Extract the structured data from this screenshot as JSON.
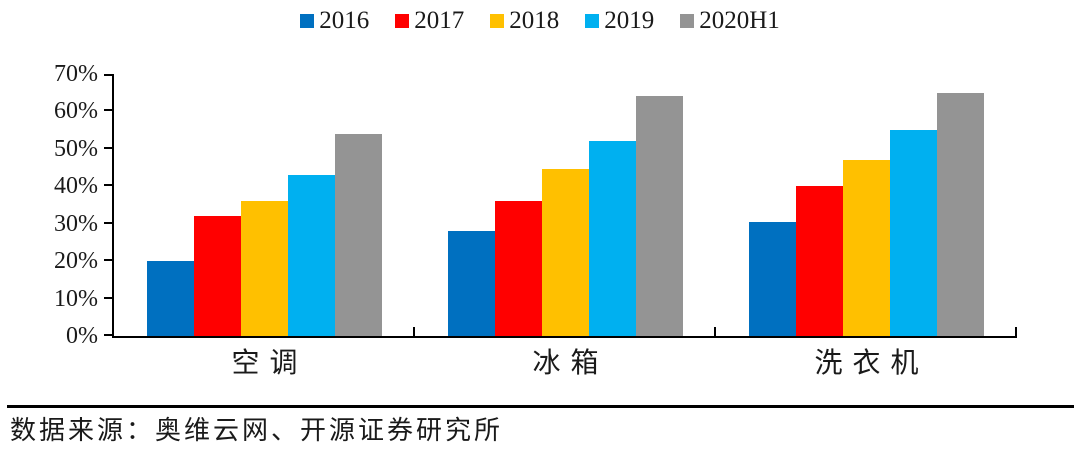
{
  "chart_data": {
    "type": "bar",
    "title": "",
    "categories": [
      "空调",
      "冰箱",
      "洗衣机"
    ],
    "series": [
      {
        "name": "2016",
        "color": "#0070C0",
        "values": [
          20,
          28,
          30.5
        ]
      },
      {
        "name": "2017",
        "color": "#FF0000",
        "values": [
          32,
          36,
          40
        ]
      },
      {
        "name": "2018",
        "color": "#FFC000",
        "values": [
          36,
          44.5,
          47
        ]
      },
      {
        "name": "2019",
        "color": "#00B0F0",
        "values": [
          43,
          52,
          55
        ]
      },
      {
        "name": "2020H1",
        "color": "#949494",
        "values": [
          54,
          64,
          65
        ]
      }
    ],
    "ylabel": "",
    "xlabel": "",
    "ylim": [
      0,
      70
    ],
    "ytick_step": 10,
    "ytick_labels": [
      "0%",
      "10%",
      "20%",
      "30%",
      "40%",
      "50%",
      "60%",
      "70%"
    ],
    "grid": false,
    "legend_position": "top-center",
    "axis_color": "#000000"
  },
  "footer": {
    "source_text": "数据来源：奥维云网、开源证券研究所"
  }
}
